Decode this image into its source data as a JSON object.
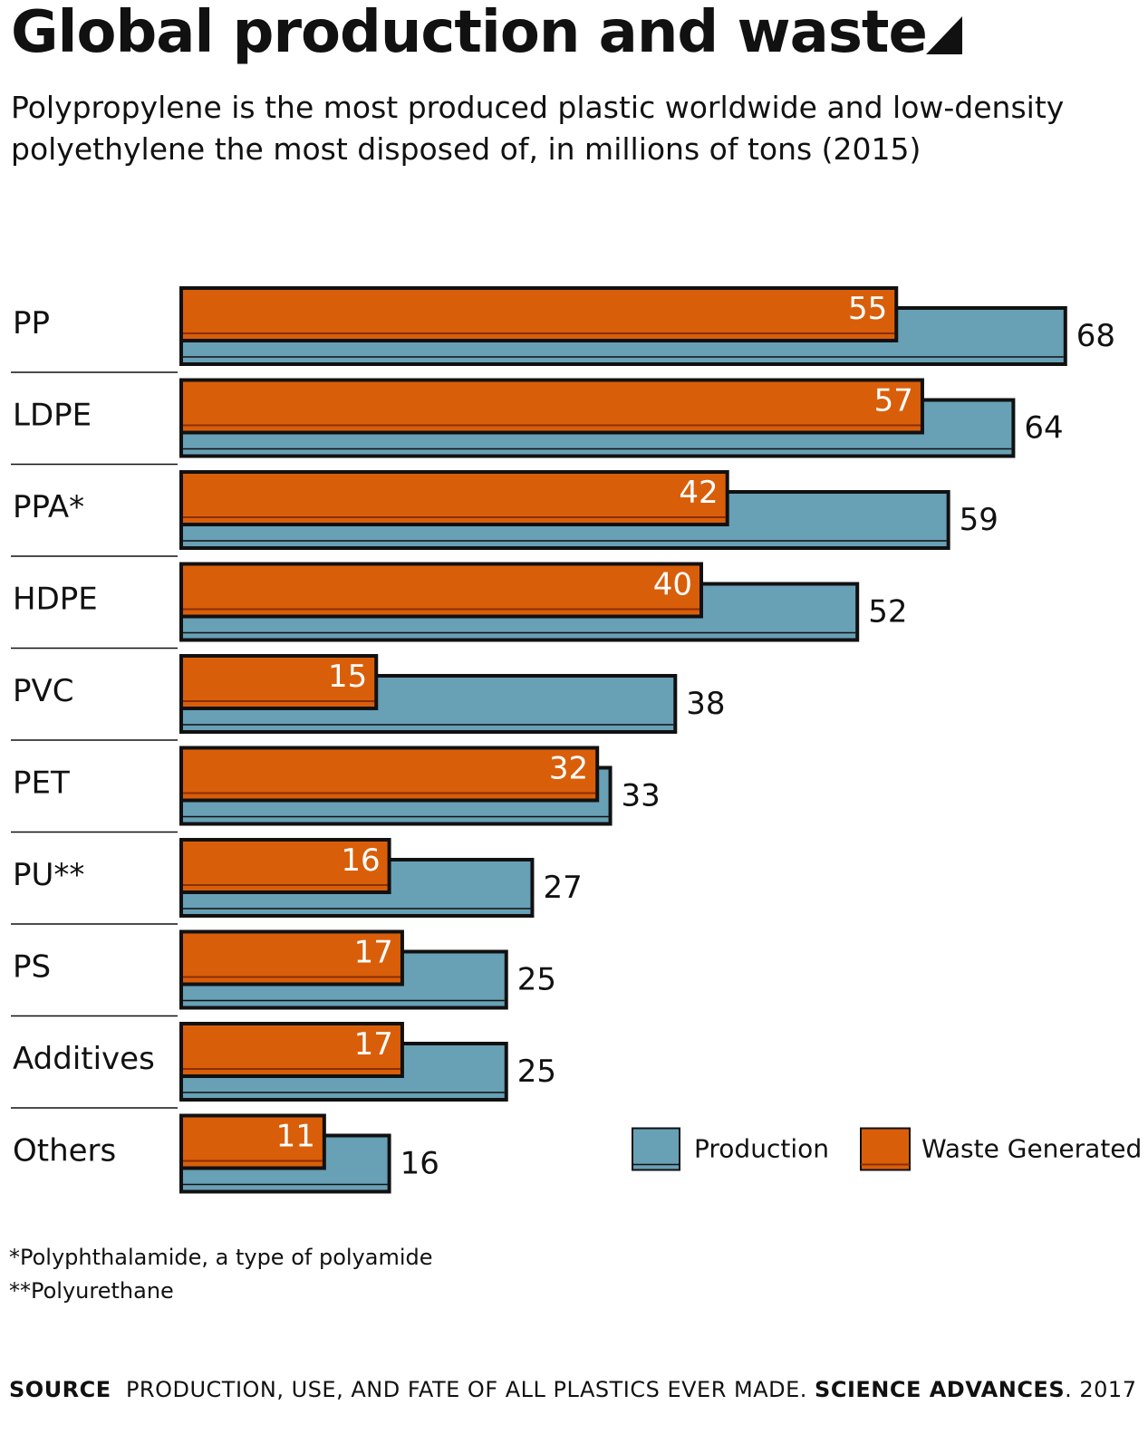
{
  "title": "Global production and waste",
  "subtitle": "Polypropylene is the most produced plastic worldwide and low-density polyethylene the most disposed of, in millions of tons (2015)",
  "legend": {
    "production": "Production",
    "waste": "Waste Generated"
  },
  "colors": {
    "production": "#68a0b6",
    "waste": "#d95e0a",
    "outline": "#111111"
  },
  "footnotes": [
    "*Polyphthalamide, a type of polyamide",
    "**Polyurethane"
  ],
  "source": {
    "label": "SOURCE",
    "text": "PRODUCTION, USE, AND FATE OF ALL PLASTICS EVER MADE.",
    "publication": "SCIENCE ADVANCES",
    "year": ". 2017"
  },
  "chart_data": {
    "type": "bar",
    "orientation": "horizontal",
    "categories": [
      "PP",
      "LDPE",
      "PPA*",
      "HDPE",
      "PVC",
      "PET",
      "PU**",
      "PS",
      "Additives",
      "Others"
    ],
    "series": [
      {
        "name": "Production",
        "values": [
          68,
          64,
          59,
          52,
          38,
          33,
          27,
          25,
          25,
          16
        ]
      },
      {
        "name": "Waste Generated",
        "values": [
          55,
          57,
          42,
          40,
          15,
          32,
          16,
          17,
          17,
          11
        ]
      }
    ],
    "legend_position": "bottom-right",
    "grid": false
  }
}
